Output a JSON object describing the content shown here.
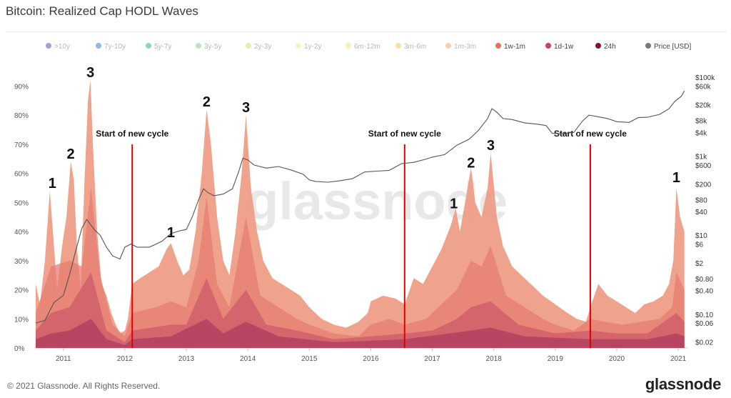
{
  "header": {
    "title": "Bitcoin: Realized Cap HODL Waves"
  },
  "footer": {
    "copyright": "© 2021 Glassnode. All Rights Reserved.",
    "brand": "glassnode"
  },
  "watermark": "glassnode",
  "colors": {
    "wave_light": "#ef9e86",
    "wave_mid": "#e57c72",
    "wave_dark": "#cf5a6a",
    "wave_darker": "#b03d5e",
    "price_line": "#555555",
    "cycle_line": "#e00000"
  },
  "chart_data": {
    "type": "area",
    "title": "Bitcoin: Realized Cap HODL Waves",
    "legend_position": "top",
    "legend": [
      {
        "name": ">10y",
        "color": "#6e4fa0",
        "icon": "dot"
      },
      {
        "name": "7y-10y",
        "color": "#3b7fc4",
        "icon": "dot"
      },
      {
        "name": "5y-7y",
        "color": "#3aa99f",
        "icon": "dot"
      },
      {
        "name": "3y-5y",
        "color": "#8bc98d",
        "icon": "dot"
      },
      {
        "name": "2y-3y",
        "color": "#c8dc7e",
        "icon": "dot"
      },
      {
        "name": "1y-2y",
        "color": "#eeec8f",
        "icon": "dot"
      },
      {
        "name": "6m-12m",
        "color": "#f6e27a",
        "icon": "dot"
      },
      {
        "name": "3m-6m",
        "color": "#f2c95e",
        "icon": "dot"
      },
      {
        "name": "1m-3m",
        "color": "#f3a76b",
        "icon": "dot"
      },
      {
        "name": "1w-1m",
        "color": "#e5705d",
        "icon": "dot"
      },
      {
        "name": "1d-1w",
        "color": "#cc3f66",
        "icon": "dot"
      },
      {
        "name": "24h",
        "color": "#7e1134",
        "icon": "dot"
      },
      {
        "name": "Price [USD]",
        "color": "#7a7a7a",
        "icon": "dot"
      }
    ],
    "legend_dimmed_count": 9,
    "x_ticks": [
      "2011",
      "2012",
      "2013",
      "2014",
      "2015",
      "2016",
      "2017",
      "2018",
      "2019",
      "2020",
      "2021"
    ],
    "x_range": [
      2010.55,
      2021.15
    ],
    "y_left_ticks": [
      "0%",
      "10%",
      "20%",
      "30%",
      "40%",
      "50%",
      "60%",
      "70%",
      "80%",
      "90%"
    ],
    "y_left_range": [
      0,
      95
    ],
    "y_right_ticks": [
      "$100k",
      "$60k",
      "$20k",
      "$8k",
      "$4k",
      "$1k",
      "$600",
      "$200",
      "$80",
      "$40",
      "$10",
      "$6",
      "$2",
      "$0.80",
      "$0.40",
      "$0.10",
      "$0.06",
      "$0.02"
    ],
    "y_right_values": [
      100000,
      60000,
      20000,
      8000,
      4000,
      1000,
      600,
      200,
      80,
      40,
      10,
      6,
      2,
      0.8,
      0.4,
      0.1,
      0.06,
      0.02
    ],
    "y_right_scale": "log",
    "y_right_range": [
      0.014,
      140000
    ],
    "cycle_lines": [
      {
        "x": 2012.12,
        "label": "Start of new cycle"
      },
      {
        "x": 2016.55,
        "label": "Start of new cycle"
      },
      {
        "x": 2019.57,
        "label": "Start of new cycle"
      }
    ],
    "peak_annotations": [
      {
        "label": "1",
        "x": 2010.82,
        "y": 55
      },
      {
        "label": "2",
        "x": 2011.12,
        "y": 65
      },
      {
        "label": "3",
        "x": 2011.44,
        "y": 93
      },
      {
        "label": "1",
        "x": 2012.75,
        "y": 38
      },
      {
        "label": "2",
        "x": 2013.33,
        "y": 83
      },
      {
        "label": "3",
        "x": 2013.97,
        "y": 81
      },
      {
        "label": "1",
        "x": 2017.35,
        "y": 48
      },
      {
        "label": "2",
        "x": 2017.63,
        "y": 62
      },
      {
        "label": "3",
        "x": 2017.95,
        "y": 68
      },
      {
        "label": "1",
        "x": 2020.97,
        "y": 57
      }
    ],
    "series": [
      {
        "name": "1m-3m",
        "x": [
          2010.55,
          2010.62,
          2010.7,
          2010.78,
          2010.83,
          2010.9,
          2010.98,
          2011.05,
          2011.12,
          2011.17,
          2011.22,
          2011.28,
          2011.34,
          2011.4,
          2011.44,
          2011.48,
          2011.55,
          2011.62,
          2011.7,
          2011.78,
          2011.85,
          2011.92,
          2012.0,
          2012.05,
          2012.12,
          2012.25,
          2012.4,
          2012.55,
          2012.68,
          2012.75,
          2012.85,
          2012.95,
          2013.05,
          2013.15,
          2013.25,
          2013.33,
          2013.4,
          2013.5,
          2013.6,
          2013.7,
          2013.8,
          2013.9,
          2013.97,
          2014.05,
          2014.15,
          2014.25,
          2014.4,
          2014.55,
          2014.7,
          2014.85,
          2015.0,
          2015.2,
          2015.4,
          2015.6,
          2015.8,
          2015.95,
          2016.0,
          2016.2,
          2016.4,
          2016.55,
          2016.7,
          2016.85,
          2017.0,
          2017.15,
          2017.3,
          2017.38,
          2017.45,
          2017.55,
          2017.63,
          2017.7,
          2017.8,
          2017.9,
          2017.95,
          2018.05,
          2018.15,
          2018.3,
          2018.45,
          2018.6,
          2018.8,
          2019.0,
          2019.2,
          2019.35,
          2019.5,
          2019.57,
          2019.7,
          2019.85,
          2020.0,
          2020.15,
          2020.3,
          2020.45,
          2020.6,
          2020.75,
          2020.85,
          2020.92,
          2020.97,
          2021.03,
          2021.1
        ],
        "values": [
          22,
          15,
          30,
          54,
          40,
          20,
          35,
          45,
          64,
          58,
          35,
          20,
          55,
          85,
          92,
          70,
          40,
          22,
          18,
          12,
          8,
          5,
          6,
          10,
          22,
          24,
          26,
          28,
          34,
          36,
          30,
          25,
          27,
          40,
          60,
          82,
          70,
          45,
          30,
          25,
          40,
          60,
          80,
          55,
          40,
          30,
          24,
          22,
          20,
          18,
          14,
          10,
          8,
          7,
          9,
          12,
          16,
          18,
          17,
          15,
          24,
          22,
          28,
          34,
          42,
          48,
          40,
          52,
          62,
          50,
          45,
          55,
          67,
          45,
          35,
          28,
          25,
          22,
          18,
          15,
          12,
          10,
          9,
          14,
          22,
          18,
          16,
          14,
          12,
          15,
          16,
          18,
          22,
          30,
          55,
          45,
          40
        ]
      },
      {
        "name": "1w-1m",
        "x": [
          2010.55,
          2010.8,
          2011.1,
          2011.3,
          2011.45,
          2011.6,
          2011.8,
          2012.0,
          2012.12,
          2012.5,
          2012.75,
          2013.0,
          2013.2,
          2013.33,
          2013.5,
          2013.7,
          2013.97,
          2014.2,
          2014.5,
          2014.8,
          2015.0,
          2015.4,
          2015.8,
          2016.0,
          2016.3,
          2016.55,
          2016.9,
          2017.2,
          2017.4,
          2017.63,
          2017.8,
          2017.95,
          2018.2,
          2018.5,
          2018.8,
          2019.0,
          2019.3,
          2019.57,
          2019.8,
          2020.1,
          2020.4,
          2020.7,
          2020.9,
          2020.97,
          2021.1
        ],
        "values": [
          12,
          28,
          30,
          28,
          55,
          25,
          8,
          4,
          12,
          14,
          16,
          14,
          30,
          52,
          22,
          14,
          45,
          18,
          14,
          10,
          8,
          5,
          4,
          8,
          10,
          8,
          10,
          16,
          20,
          30,
          28,
          35,
          18,
          14,
          10,
          8,
          6,
          10,
          9,
          8,
          9,
          10,
          14,
          26,
          20
        ]
      },
      {
        "name": "1d-1w",
        "x": [
          2010.55,
          2010.8,
          2011.1,
          2011.45,
          2011.7,
          2012.0,
          2012.12,
          2012.75,
          2013.0,
          2013.33,
          2013.6,
          2013.97,
          2014.3,
          2014.8,
          2015.4,
          2016.0,
          2016.55,
          2017.0,
          2017.4,
          2017.63,
          2017.95,
          2018.4,
          2019.0,
          2019.57,
          2020.0,
          2020.5,
          2020.97,
          2021.1
        ],
        "values": [
          6,
          12,
          14,
          26,
          6,
          2,
          6,
          8,
          8,
          24,
          10,
          20,
          8,
          6,
          3,
          4,
          5,
          6,
          10,
          14,
          16,
          8,
          5,
          6,
          5,
          5,
          12,
          9
        ]
      },
      {
        "name": "24h",
        "x": [
          2010.55,
          2010.8,
          2011.1,
          2011.45,
          2011.7,
          2012.0,
          2012.12,
          2012.75,
          2013.33,
          2013.6,
          2013.97,
          2014.5,
          2015.4,
          2016.55,
          2017.63,
          2017.95,
          2018.5,
          2019.57,
          2020.5,
          2020.97,
          2021.1
        ],
        "values": [
          3,
          5,
          6,
          10,
          3,
          1,
          3,
          4,
          10,
          5,
          9,
          4,
          2,
          3,
          6,
          7,
          4,
          3,
          3,
          5,
          4
        ]
      },
      {
        "name": "Price [USD]",
        "x": [
          2010.55,
          2010.7,
          2010.85,
          2011.0,
          2011.1,
          2011.2,
          2011.3,
          2011.38,
          2011.45,
          2011.5,
          2011.6,
          2011.7,
          2011.8,
          2011.92,
          2012.0,
          2012.1,
          2012.2,
          2012.4,
          2012.6,
          2012.75,
          2012.9,
          2013.0,
          2013.1,
          2013.2,
          2013.28,
          2013.35,
          2013.45,
          2013.6,
          2013.75,
          2013.85,
          2013.92,
          2014.0,
          2014.1,
          2014.3,
          2014.5,
          2014.7,
          2014.9,
          2015.0,
          2015.1,
          2015.3,
          2015.5,
          2015.7,
          2015.9,
          2016.1,
          2016.3,
          2016.5,
          2016.7,
          2016.9,
          2017.0,
          2017.2,
          2017.4,
          2017.6,
          2017.75,
          2017.9,
          2017.97,
          2018.05,
          2018.15,
          2018.3,
          2018.5,
          2018.7,
          2018.85,
          2018.95,
          2019.1,
          2019.3,
          2019.45,
          2019.55,
          2019.7,
          2019.85,
          2020.0,
          2020.2,
          2020.35,
          2020.5,
          2020.7,
          2020.85,
          2020.95,
          2021.05,
          2021.1
        ],
        "values": [
          0.06,
          0.07,
          0.2,
          0.3,
          1,
          4,
          15,
          25,
          18,
          14,
          10,
          5,
          3,
          2.5,
          5,
          6,
          5,
          5,
          7,
          11,
          13,
          14,
          30,
          80,
          150,
          120,
          100,
          110,
          150,
          400,
          900,
          800,
          600,
          500,
          550,
          450,
          350,
          250,
          230,
          220,
          240,
          270,
          400,
          420,
          440,
          650,
          700,
          850,
          950,
          1100,
          1900,
          2700,
          4500,
          9000,
          16000,
          13000,
          9000,
          8500,
          7000,
          6500,
          6000,
          3800,
          3700,
          4000,
          8000,
          11000,
          10000,
          9000,
          7500,
          7200,
          9500,
          9700,
          11500,
          16000,
          25000,
          33000,
          45000
        ]
      }
    ]
  }
}
